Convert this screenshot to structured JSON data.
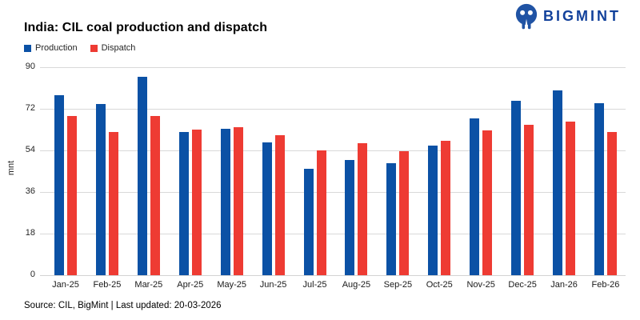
{
  "header": {
    "title": "India: CIL coal production and dispatch",
    "logo_text": "BIGMINT"
  },
  "footer": {
    "source_line": "Source: CIL, BigMint | Last updated: 20-03-2026"
  },
  "colors": {
    "production_blue": "#0B51A5",
    "dispatch_red": "#EE3B33",
    "gridline": "#D9D9D9",
    "logo_navy": "#12419B",
    "logo_icon_blue": "#2053A4"
  },
  "chart_data": {
    "type": "bar",
    "title": "India: CIL coal production and dispatch",
    "categories": [
      "Jan-25",
      "Feb-25",
      "Mar-25",
      "Apr-25",
      "May-25",
      "Jun-25",
      "Jul-25",
      "Aug-25",
      "Sep-25",
      "Oct-25",
      "Nov-25",
      "Dec-25",
      "Jan-26",
      "Feb-26"
    ],
    "series": [
      {
        "name": "Production",
        "color": "#0B51A5",
        "values": [
          78,
          74,
          86,
          62,
          63.5,
          57.5,
          46,
          50,
          48.5,
          56,
          68,
          75.5,
          80,
          74.5
        ]
      },
      {
        "name": "Dispatch",
        "color": "#EE3B33",
        "values": [
          69,
          62,
          69,
          63,
          64,
          60.5,
          54,
          57,
          53.5,
          58,
          62.5,
          65,
          66.5,
          62
        ]
      }
    ],
    "xlabel": "",
    "ylabel": "mnt",
    "ylim": [
      0,
      90
    ],
    "yticks": [
      0,
      18,
      36,
      54,
      72,
      90
    ],
    "grid": true,
    "legend_position": "top-left"
  }
}
